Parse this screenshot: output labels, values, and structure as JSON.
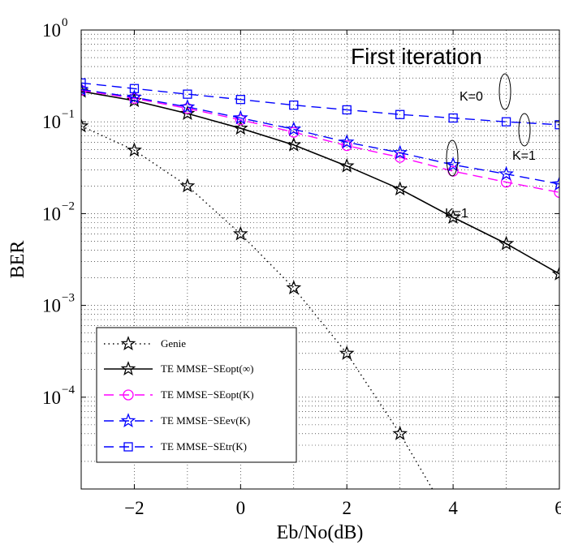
{
  "chart_data": {
    "type": "line",
    "title": "",
    "xlabel": "Eb/No(dB)",
    "ylabel": "BER",
    "xlim": [
      -3,
      6
    ],
    "ylim": [
      1e-05,
      1
    ],
    "yscale": "log",
    "grid": true,
    "x_ticks": [
      -2,
      0,
      2,
      4,
      6
    ],
    "x_tick_labels": [
      "−2",
      "0",
      "2",
      "4",
      "6"
    ],
    "y_ticks": [
      {
        "base": "10",
        "exp": "0",
        "value": 1
      },
      {
        "base": "10",
        "exp": "−1",
        "value": 0.1
      },
      {
        "base": "10",
        "exp": "−2",
        "value": 0.01
      },
      {
        "base": "10",
        "exp": "−3",
        "value": 0.001
      },
      {
        "base": "10",
        "exp": "−4",
        "value": 0.0001
      }
    ],
    "legend_position": "bottom-left",
    "series": [
      {
        "name": "Genie",
        "color": "#000000",
        "line": "dotted",
        "marker": "star",
        "x": [
          -3,
          -2,
          -1,
          0,
          1,
          2,
          3,
          4
        ],
        "y": [
          0.09,
          0.049,
          0.02,
          0.006,
          0.00155,
          0.0003,
          4e-05,
          4.1e-06
        ]
      },
      {
        "name": "TE MMSE−SEopt(∞)",
        "color": "#000000",
        "line": "solid",
        "marker": "star",
        "x": [
          -3,
          -2,
          -1,
          0,
          1,
          2,
          3,
          4,
          5,
          6
        ],
        "y": [
          0.215,
          0.17,
          0.123,
          0.085,
          0.056,
          0.033,
          0.0185,
          0.0091,
          0.0047,
          0.0022
        ]
      },
      {
        "name": "TE MMSE−SEopt(K)",
        "color": "#ff00ff",
        "line": "dashed",
        "marker": "circle",
        "x": [
          -3,
          -2,
          -1,
          0,
          1,
          2,
          3,
          4,
          5,
          6
        ],
        "y": [
          0.22,
          0.18,
          0.14,
          0.105,
          0.077,
          0.055,
          0.041,
          0.029,
          0.022,
          0.017
        ]
      },
      {
        "name": "TE MMSE−SEev(K)",
        "color": "#0000ff",
        "line": "dashed",
        "marker": "star",
        "x": [
          -3,
          -2,
          -1,
          0,
          1,
          2,
          3,
          4,
          5,
          6
        ],
        "y": [
          0.225,
          0.185,
          0.145,
          0.11,
          0.083,
          0.06,
          0.046,
          0.034,
          0.027,
          0.021
        ]
      },
      {
        "name": "TE MMSE−SEtr(K)",
        "color": "#0000ff",
        "line": "dashed",
        "marker": "square",
        "x": [
          -3,
          -2,
          -1,
          0,
          1,
          2,
          3,
          4,
          5,
          6
        ],
        "y": [
          0.265,
          0.23,
          0.2,
          0.175,
          0.152,
          0.135,
          0.12,
          0.11,
          0.1,
          0.093
        ]
      }
    ],
    "annotations": [
      "First iteration",
      "K=0",
      "K=1",
      "K=1"
    ]
  }
}
